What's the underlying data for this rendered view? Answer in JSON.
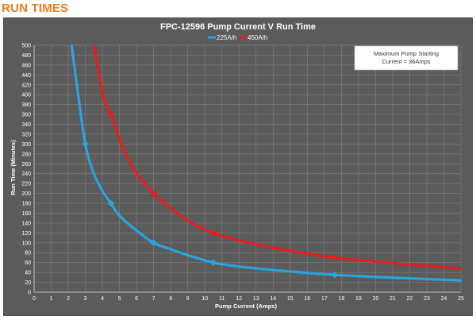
{
  "page": {
    "heading": "RUN TIMES"
  },
  "chart_data": {
    "type": "line",
    "title": "FPC-12596 Pump Current V Run Time",
    "xlabel": "Pump Current (Amps)",
    "ylabel": "Run Time (Minutes)",
    "xlim": [
      0,
      25
    ],
    "ylim": [
      0,
      500
    ],
    "x_ticks": [
      0,
      1,
      2,
      3,
      4,
      5,
      6,
      7,
      8,
      9,
      10,
      11,
      12,
      13,
      14,
      15,
      16,
      17,
      18,
      19,
      20,
      21,
      22,
      23,
      24,
      25
    ],
    "y_ticks": [
      0,
      20,
      40,
      60,
      80,
      100,
      120,
      140,
      160,
      180,
      200,
      220,
      240,
      260,
      280,
      300,
      320,
      340,
      360,
      380,
      400,
      420,
      440,
      460,
      480,
      500
    ],
    "grid": true,
    "legend_position": "top",
    "annotation": [
      "Maximum Pump Starting",
      "Current = 36Amps"
    ],
    "series": [
      {
        "name": "225A/h",
        "color": "#2aa4e0",
        "x": [
          2.2,
          2.5,
          3.0,
          3.5,
          4.0,
          4.5,
          5.0,
          6.0,
          7.0,
          8.0,
          9.0,
          10.5,
          12.0,
          14.0,
          16.0,
          17.6,
          20.0,
          22.0,
          25.0
        ],
        "values": [
          500,
          420,
          300,
          240,
          205,
          180,
          155,
          125,
          100,
          87,
          75,
          60,
          52,
          45,
          39,
          35,
          31,
          28,
          24
        ],
        "markers": [
          {
            "x": 3.0,
            "y": 300
          },
          {
            "x": 4.5,
            "y": 180
          },
          {
            "x": 7.0,
            "y": 100
          },
          {
            "x": 10.5,
            "y": 60
          },
          {
            "x": 17.6,
            "y": 35
          }
        ]
      },
      {
        "name": "450A/h",
        "color": "#e61e1e",
        "x": [
          3.5,
          3.8,
          4.1,
          4.5,
          5.0,
          5.5,
          6.0,
          7.0,
          8.0,
          9.0,
          10.5,
          12.0,
          14.0,
          16.0,
          17.6,
          20.0,
          22.0,
          25.0
        ],
        "values": [
          500,
          440,
          390,
          360,
          310,
          270,
          240,
          200,
          170,
          145,
          120,
          105,
          90,
          78,
          70,
          62,
          56,
          48
        ],
        "markers": [
          {
            "x": 4.5,
            "y": 360
          },
          {
            "x": 7.0,
            "y": 200
          },
          {
            "x": 10.5,
            "y": 120
          },
          {
            "x": 17.6,
            "y": 70
          }
        ]
      }
    ]
  }
}
